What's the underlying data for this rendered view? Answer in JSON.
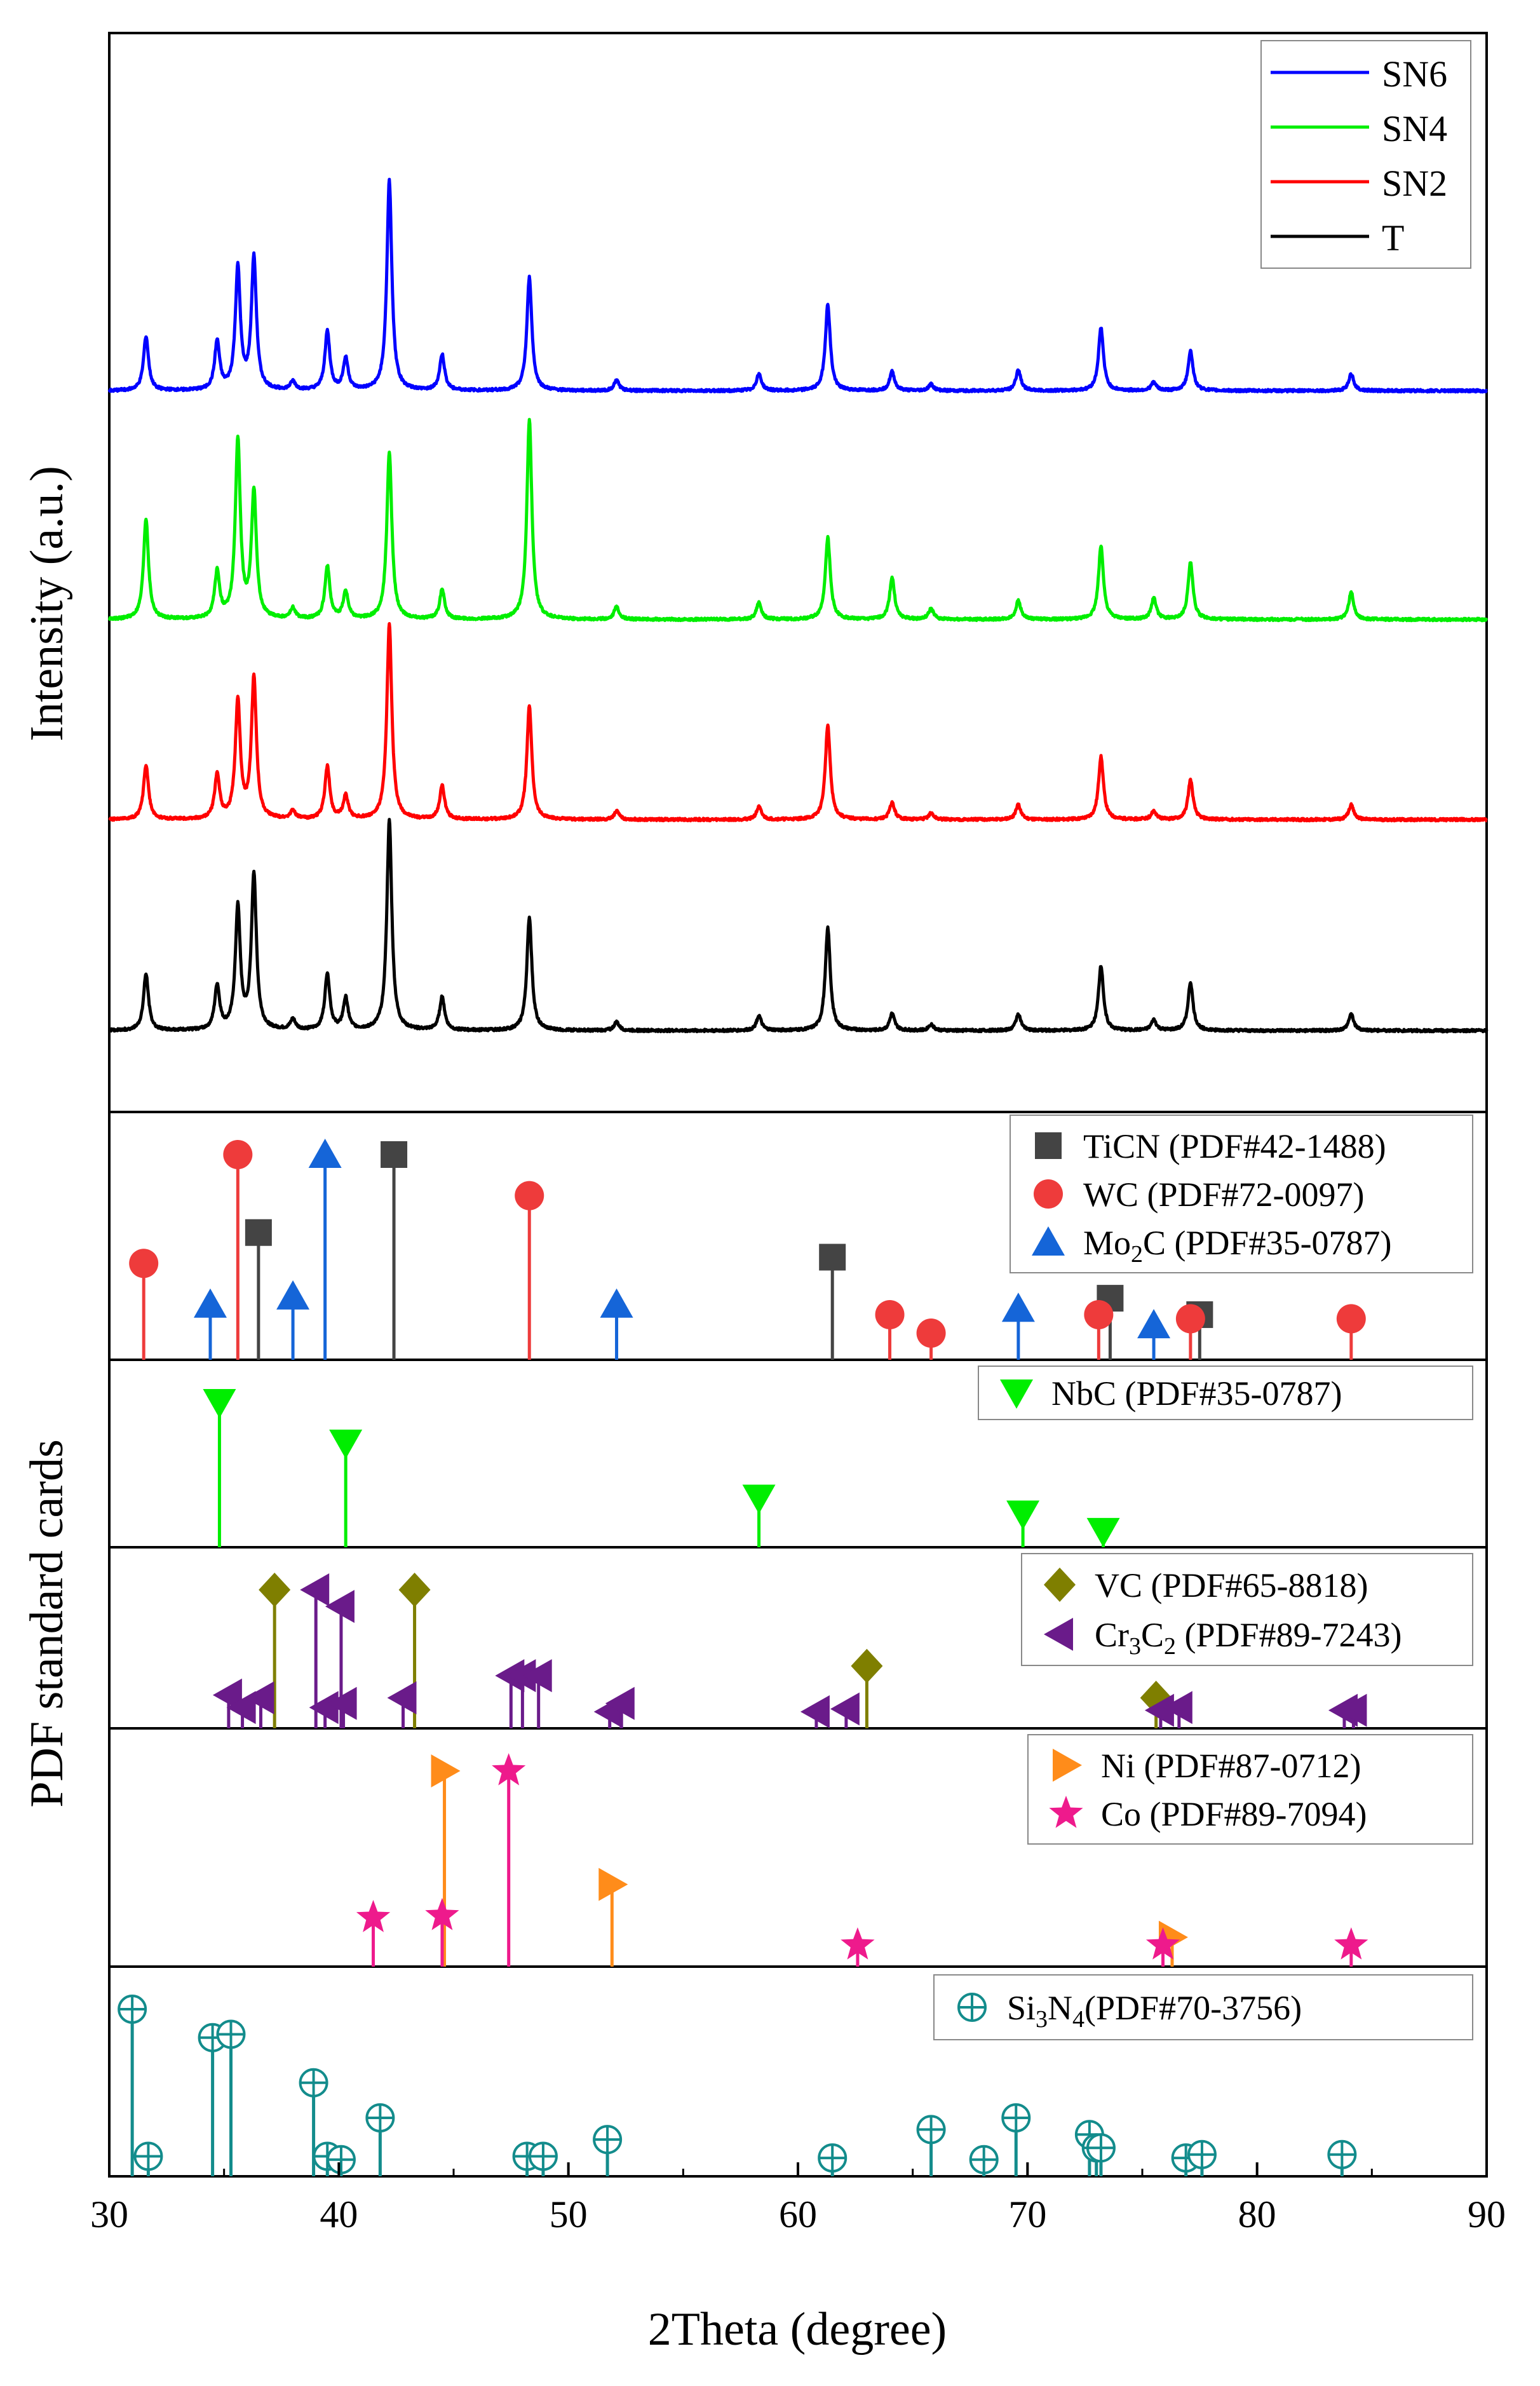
{
  "chart_data": {
    "type": "line",
    "xlabel": "2Theta (degree)",
    "ylabel_top": "Intensity (a.u.)",
    "ylabel_bottom": "PDF standard cards",
    "xlim": [
      30,
      90
    ],
    "xticks": [
      "30",
      "40",
      "50",
      "60",
      "70",
      "80",
      "90"
    ],
    "xpanel": {
      "series": [
        {
          "name": "SN6",
          "color": "#0000ff",
          "offset": 3,
          "noise": 7
        },
        {
          "name": "SN4",
          "color": "#00ee00",
          "offset": 2,
          "noise": 11
        },
        {
          "name": "SN2",
          "color": "#ff0000",
          "offset": 1,
          "noise": 13
        },
        {
          "name": "T",
          "color": "#000000",
          "offset": 0,
          "noise": 17
        }
      ],
      "ylim": [
        0,
        5.0
      ],
      "note": "Peaks as [2theta, relative intensity] per pattern",
      "peaks": {
        "SN6": [
          [
            31.6,
            0.26
          ],
          [
            34.7,
            0.23
          ],
          [
            35.6,
            0.58
          ],
          [
            36.3,
            0.63
          ],
          [
            38.0,
            0.04
          ],
          [
            39.5,
            0.28
          ],
          [
            40.3,
            0.15
          ],
          [
            42.2,
            1.0
          ],
          [
            44.5,
            0.17
          ],
          [
            48.3,
            0.54
          ],
          [
            52.1,
            0.05
          ],
          [
            58.3,
            0.08
          ],
          [
            61.3,
            0.41
          ],
          [
            64.1,
            0.09
          ],
          [
            65.8,
            0.03
          ],
          [
            69.6,
            0.1
          ],
          [
            73.2,
            0.3
          ],
          [
            75.5,
            0.04
          ],
          [
            77.1,
            0.19
          ],
          [
            84.1,
            0.08
          ]
        ],
        "SN4": [
          [
            31.6,
            0.48
          ],
          [
            34.7,
            0.22
          ],
          [
            35.6,
            0.85
          ],
          [
            36.3,
            0.6
          ],
          [
            38.0,
            0.05
          ],
          [
            39.5,
            0.25
          ],
          [
            40.3,
            0.13
          ],
          [
            42.2,
            0.8
          ],
          [
            44.5,
            0.14
          ],
          [
            48.3,
            0.95
          ],
          [
            52.1,
            0.06
          ],
          [
            58.3,
            0.08
          ],
          [
            61.3,
            0.39
          ],
          [
            64.1,
            0.2
          ],
          [
            65.8,
            0.05
          ],
          [
            69.6,
            0.09
          ],
          [
            73.2,
            0.35
          ],
          [
            75.5,
            0.1
          ],
          [
            77.1,
            0.27
          ],
          [
            84.1,
            0.13
          ]
        ],
        "SN2": [
          [
            31.6,
            0.26
          ],
          [
            34.7,
            0.21
          ],
          [
            35.6,
            0.56
          ],
          [
            36.3,
            0.67
          ],
          [
            38.0,
            0.04
          ],
          [
            39.5,
            0.25
          ],
          [
            40.3,
            0.11
          ],
          [
            42.2,
            0.93
          ],
          [
            44.5,
            0.16
          ],
          [
            48.3,
            0.54
          ],
          [
            52.1,
            0.04
          ],
          [
            58.3,
            0.06
          ],
          [
            61.3,
            0.45
          ],
          [
            64.1,
            0.08
          ],
          [
            65.8,
            0.03
          ],
          [
            69.6,
            0.07
          ],
          [
            73.2,
            0.3
          ],
          [
            75.5,
            0.04
          ],
          [
            77.1,
            0.19
          ],
          [
            84.1,
            0.07
          ]
        ],
        "T": [
          [
            31.6,
            0.27
          ],
          [
            34.7,
            0.21
          ],
          [
            35.6,
            0.58
          ],
          [
            36.3,
            0.74
          ],
          [
            38.0,
            0.05
          ],
          [
            39.5,
            0.27
          ],
          [
            40.3,
            0.15
          ],
          [
            42.2,
            1.0
          ],
          [
            44.5,
            0.16
          ],
          [
            48.3,
            0.54
          ],
          [
            52.1,
            0.04
          ],
          [
            58.3,
            0.07
          ],
          [
            61.3,
            0.49
          ],
          [
            64.1,
            0.08
          ],
          [
            65.8,
            0.03
          ],
          [
            69.6,
            0.08
          ],
          [
            73.2,
            0.31
          ],
          [
            75.5,
            0.05
          ],
          [
            77.1,
            0.23
          ],
          [
            84.1,
            0.08
          ]
        ]
      }
    },
    "cards": [
      {
        "name": "panel-1",
        "entries": [
          {
            "label_pre": "TiCN (PDF#42-1488)",
            "sub": "",
            "label_post": "",
            "color": "#444444",
            "marker": "square",
            "peaks": [
              [
                36.5,
                0.62
              ],
              [
                42.4,
                1.0
              ],
              [
                61.5,
                0.5
              ],
              [
                73.6,
                0.3
              ],
              [
                77.5,
                0.22
              ]
            ]
          },
          {
            "label_pre": "WC (PDF#72-0097)",
            "sub": "",
            "label_post": "",
            "color": "#ee3b3b",
            "marker": "circle",
            "peaks": [
              [
                31.5,
                0.47
              ],
              [
                35.6,
                1.0
              ],
              [
                48.3,
                0.8
              ],
              [
                64.0,
                0.22
              ],
              [
                65.8,
                0.13
              ],
              [
                73.1,
                0.22
              ],
              [
                77.1,
                0.2
              ],
              [
                84.1,
                0.2
              ]
            ]
          },
          {
            "label_pre": "Mo",
            "sub": "2",
            "label_post": "C (PDF#35-0787)",
            "color": "#1565d8",
            "marker": "triangle-up",
            "peaks": [
              [
                34.4,
                0.27
              ],
              [
                38.0,
                0.31
              ],
              [
                39.4,
                1.0
              ],
              [
                52.1,
                0.27
              ],
              [
                69.6,
                0.25
              ],
              [
                75.5,
                0.17
              ]
            ]
          }
        ]
      },
      {
        "name": "panel-2",
        "entries": [
          {
            "label_pre": "NbC (PDF#35-0787)",
            "sub": "",
            "label_post": "",
            "color": "#00ee00",
            "marker": "triangle-down",
            "peaks": [
              [
                34.8,
                1.0
              ],
              [
                40.3,
                0.72
              ],
              [
                58.3,
                0.34
              ],
              [
                69.8,
                0.23
              ],
              [
                73.3,
                0.11
              ]
            ]
          }
        ]
      },
      {
        "name": "panel-3",
        "entries": [
          {
            "label_pre": "VC (PDF#65-8818)",
            "sub": "",
            "label_post": "",
            "color": "#7f7f00",
            "marker": "diamond",
            "peaks": [
              [
                37.2,
                1.0
              ],
              [
                43.3,
                1.0
              ],
              [
                63.0,
                0.45
              ],
              [
                75.6,
                0.22
              ]
            ]
          },
          {
            "label_pre": "Cr",
            "sub": "3",
            "label_post": "C",
            "sub2": "2",
            "label_post2": " (PDF#89-7243)",
            "color": "#6a1b8a",
            "marker": "triangle-left",
            "peaks": [
              [
                35.2,
                0.24
              ],
              [
                35.8,
                0.15
              ],
              [
                36.6,
                0.22
              ],
              [
                39.0,
                1.0
              ],
              [
                39.4,
                0.15
              ],
              [
                40.1,
                0.88
              ],
              [
                40.2,
                0.18
              ],
              [
                42.8,
                0.22
              ],
              [
                47.5,
                0.38
              ],
              [
                48.0,
                0.38
              ],
              [
                48.7,
                0.38
              ],
              [
                51.8,
                0.12
              ],
              [
                52.3,
                0.18
              ],
              [
                60.8,
                0.12
              ],
              [
                62.1,
                0.14
              ],
              [
                75.8,
                0.13
              ],
              [
                76.6,
                0.15
              ],
              [
                83.8,
                0.13
              ],
              [
                84.2,
                0.13
              ]
            ]
          }
        ]
      },
      {
        "name": "panel-4",
        "entries": [
          {
            "label_pre": "Ni (PDF#87-0712)",
            "sub": "",
            "label_post": "",
            "color": "#ff8c1a",
            "marker": "triangle-right",
            "peaks": [
              [
                44.6,
                1.0
              ],
              [
                51.9,
                0.42
              ],
              [
                76.3,
                0.15
              ]
            ]
          },
          {
            "label_pre": "Co (PDF#89-7094)",
            "sub": "",
            "label_post": "",
            "color": "#ee1a8c",
            "marker": "star",
            "peaks": [
              [
                41.5,
                0.25
              ],
              [
                44.5,
                0.26
              ],
              [
                47.4,
                1.0
              ],
              [
                62.6,
                0.11
              ],
              [
                75.9,
                0.11
              ],
              [
                84.1,
                0.11
              ]
            ]
          }
        ]
      },
      {
        "name": "panel-5",
        "entries": [
          {
            "label_pre": "Si",
            "sub": "3",
            "label_post": "N",
            "sub2": "4",
            "label_post2": "(PDF#70-3756)",
            "color": "#138c8c",
            "marker": "circle-plus",
            "peaks": [
              [
                31.0,
                1.0
              ],
              [
                31.7,
                0.12
              ],
              [
                34.5,
                0.83
              ],
              [
                35.3,
                0.85
              ],
              [
                38.9,
                0.56
              ],
              [
                39.5,
                0.12
              ],
              [
                40.1,
                0.1
              ],
              [
                41.8,
                0.35
              ],
              [
                48.2,
                0.12
              ],
              [
                48.9,
                0.12
              ],
              [
                51.7,
                0.22
              ],
              [
                61.5,
                0.11
              ],
              [
                65.8,
                0.28
              ],
              [
                68.1,
                0.1
              ],
              [
                69.5,
                0.35
              ],
              [
                72.7,
                0.25
              ],
              [
                73.0,
                0.17
              ],
              [
                73.2,
                0.17
              ],
              [
                76.9,
                0.11
              ],
              [
                77.6,
                0.13
              ],
              [
                83.7,
                0.13
              ]
            ]
          }
        ]
      }
    ]
  }
}
